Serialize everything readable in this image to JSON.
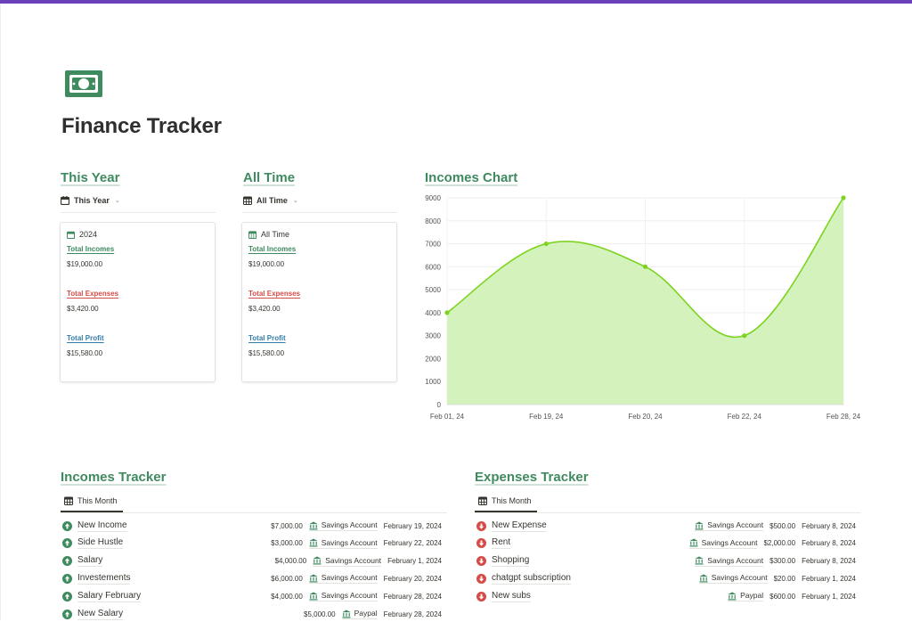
{
  "page": {
    "title": "Finance Tracker",
    "icon": "money-bill-icon"
  },
  "colors": {
    "accent_green": "#3f8a5f",
    "expense_red": "#d44c47",
    "profit_blue": "#337ea9",
    "chart_line": "#7ed321",
    "chart_fill": "#d4f3bc",
    "top_bar": "#6a3fb8"
  },
  "this_year": {
    "heading": "This Year",
    "tab": {
      "label": "This Year",
      "icon": "calendar-icon"
    },
    "card": {
      "title": "2024",
      "total_incomes_label": "Total Incomes",
      "total_incomes": "$19,000.00",
      "total_expenses_label": "Total Expenses",
      "total_expenses": "$3,420.00",
      "total_profit_label": "Total Profit",
      "total_profit": "$15,580.00"
    }
  },
  "all_time": {
    "heading": "All Time",
    "tab": {
      "label": "All Time",
      "icon": "table-icon"
    },
    "card": {
      "title": "All Time",
      "total_incomes_label": "Total Incomes",
      "total_incomes": "$19,000.00",
      "total_expenses_label": "Total Expenses",
      "total_expenses": "$3,420.00",
      "total_profit_label": "Total Profit",
      "total_profit": "$15,580.00"
    }
  },
  "incomes_chart": {
    "heading": "Incomes Chart"
  },
  "chart_data": {
    "type": "area",
    "title": "",
    "xlabel": "",
    "ylabel": "",
    "categories": [
      "Feb 01, 24",
      "Feb 19, 24",
      "Feb 20, 24",
      "Feb 22, 24",
      "Feb 28, 24"
    ],
    "values": [
      4000,
      7000,
      6000,
      3000,
      9000
    ],
    "ylim": [
      0,
      9000
    ],
    "yticks": [
      0,
      1000,
      2000,
      3000,
      4000,
      5000,
      6000,
      7000,
      8000,
      9000
    ],
    "grid": true,
    "smooth": true
  },
  "incomes_tracker": {
    "heading": "Incomes Tracker",
    "tab": {
      "label": "This Month",
      "icon": "table-icon"
    },
    "rows": [
      {
        "name": "New Income",
        "amount": "$7,000.00",
        "account": "Savings Account",
        "date": "February 19, 2024"
      },
      {
        "name": "Side Hustle",
        "amount": "$3,000.00",
        "account": "Savings Account",
        "date": "February 22, 2024"
      },
      {
        "name": "Salary",
        "amount": "$4,000.00",
        "account": "Savings Account",
        "date": "February 1, 2024"
      },
      {
        "name": "Investements",
        "amount": "$6,000.00",
        "account": "Savings Account",
        "date": "February 20, 2024"
      },
      {
        "name": "Salary February",
        "amount": "$4,000.00",
        "account": "Savings Account",
        "date": "February 28, 2024"
      },
      {
        "name": "New Salary",
        "amount": "$5,000.00",
        "account": "Paypal",
        "date": "February 28, 2024"
      }
    ]
  },
  "expenses_tracker": {
    "heading": "Expenses Tracker",
    "tab": {
      "label": "This Month",
      "icon": "table-icon"
    },
    "rows": [
      {
        "name": "New Expense",
        "account": "Savings Account",
        "amount": "$500.00",
        "date": "February 8, 2024"
      },
      {
        "name": "Rent",
        "account": "Savings Account",
        "amount": "$2,000.00",
        "date": "February 8, 2024"
      },
      {
        "name": "Shopping",
        "account": "Savings Account",
        "amount": "$300.00",
        "date": "February 8, 2024"
      },
      {
        "name": "chatgpt subscription",
        "account": "Savings Account",
        "amount": "$20.00",
        "date": "February 1, 2024"
      },
      {
        "name": "New subs",
        "account": "Paypal",
        "amount": "$600.00",
        "date": "February 1, 2024"
      }
    ]
  }
}
